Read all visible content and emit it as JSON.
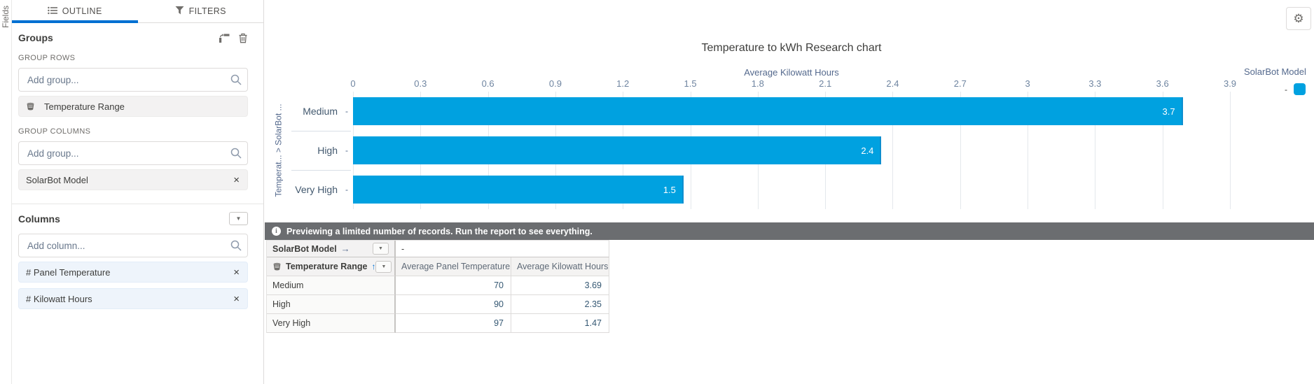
{
  "left_rail": {
    "label": "Fields"
  },
  "sidebar": {
    "tabs": [
      {
        "label": "OUTLINE",
        "icon": "list-icon",
        "active": true
      },
      {
        "label": "FILTERS",
        "icon": "funnel-icon",
        "active": false
      }
    ],
    "groups": {
      "title": "Groups",
      "group_rows_label": "GROUP ROWS",
      "group_columns_label": "GROUP COLUMNS",
      "add_group_placeholder": "Add group...",
      "row_groups": [
        {
          "label": "Temperature Range",
          "icon": "bucket-icon"
        }
      ],
      "column_groups": [
        {
          "label": "SolarBot Model"
        }
      ]
    },
    "columns": {
      "title": "Columns",
      "add_column_placeholder": "Add column...",
      "items": [
        {
          "label": "# Panel Temperature"
        },
        {
          "label": "# Kilowatt Hours"
        }
      ]
    }
  },
  "main": {
    "notice": "Previewing a limited number of records. Run the report to see everything.",
    "table": {
      "col_group_header": "SolarBot Model",
      "col_group_arrow": "→",
      "col_group_value": "-",
      "row_group_header": "Temperature Range",
      "row_group_sort": "↑",
      "value_headers": [
        "Average Panel Temperature",
        "Average Kilowatt Hours"
      ],
      "rows": [
        {
          "label": "Medium",
          "panel_temp": "70",
          "kwh": "3.69"
        },
        {
          "label": "High",
          "panel_temp": "90",
          "kwh": "2.35"
        },
        {
          "label": "Very High",
          "panel_temp": "97",
          "kwh": "1.47"
        }
      ]
    }
  },
  "chart_data": {
    "type": "bar",
    "orientation": "horizontal",
    "title": "Temperature to kWh Research chart",
    "xlabel": "Average Kilowatt Hours",
    "ylabel": "Temperat... > SolarBot ...",
    "categories": [
      "Medium",
      "High",
      "Very High"
    ],
    "category_sublabel": "-",
    "values": [
      3.69,
      2.35,
      1.47
    ],
    "bar_labels": [
      "3.7",
      "2.4",
      "1.5"
    ],
    "xlim": [
      0,
      3.9
    ],
    "xticks": [
      0,
      0.3,
      0.6,
      0.9,
      1.2,
      1.5,
      1.8,
      2.1,
      2.4,
      2.7,
      3,
      3.3,
      3.6,
      3.9
    ],
    "xtick_labels": [
      "0",
      "0.3",
      "0.6",
      "0.9",
      "1.2",
      "1.5",
      "1.8",
      "2.1",
      "2.4",
      "2.7",
      "3",
      "3.3",
      "3.6",
      "3.9"
    ],
    "grid": true,
    "bar_color": "#00A1E0",
    "legend": {
      "title": "SolarBot Model",
      "position": "right",
      "entries": [
        {
          "label": "-",
          "color": "#00A1E0"
        }
      ]
    }
  },
  "colors": {
    "accent_blue": "#0070d2",
    "bar_blue": "#00A1E0",
    "notice_grey": "#6b6d70",
    "text_grey": "#3e3e3c",
    "axis_blue_grey": "#54698d"
  }
}
